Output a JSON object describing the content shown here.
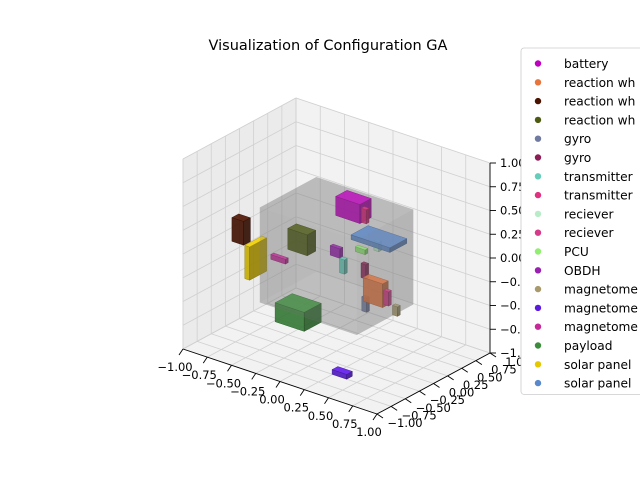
{
  "chart_data": {
    "type": "scatter",
    "subtype": "3d-boxes",
    "title": "Visualization of Configuration GA",
    "xlabel": "",
    "ylabel": "",
    "zlabel": "",
    "xlim": [
      -1.0,
      1.0
    ],
    "ylim": [
      -1.0,
      1.0
    ],
    "zlim": [
      -1.0,
      1.0
    ],
    "x_ticks": [
      "−1.00",
      "−0.75",
      "−0.50",
      "−0.25",
      "0.00",
      "0.25",
      "0.50",
      "0.75",
      "1.00"
    ],
    "y_ticks": [
      "−1.00",
      "−0.75",
      "−0.50",
      "−0.25",
      "0.00",
      "0.25",
      "0.50",
      "0.75",
      "1.00"
    ],
    "z_ticks": [
      "−1.00",
      "−0.75",
      "−0.50",
      "−0.25",
      "0.00",
      "0.25",
      "0.50",
      "0.75",
      "1.00"
    ],
    "grid": true,
    "legend_position": "right",
    "structure": {
      "color": "#808080",
      "label": ""
    },
    "components": [
      {
        "name": "battery",
        "color": "#c000c0",
        "center": [
          0.0,
          0.3,
          0.42
        ],
        "size": [
          0.25,
          0.2,
          0.2
        ]
      },
      {
        "name": "reaction wh",
        "color": "#e8743b",
        "center": [
          0.55,
          -0.25,
          -0.1
        ],
        "size": [
          0.2,
          0.1,
          0.25
        ]
      },
      {
        "name": "reaction wh",
        "color": "#4a1200",
        "center": [
          -0.75,
          -0.4,
          0.15
        ],
        "size": [
          0.12,
          0.12,
          0.25
        ]
      },
      {
        "name": "reaction wh",
        "color": "#4d5a12",
        "center": [
          -0.3,
          -0.1,
          0.1
        ],
        "size": [
          0.2,
          0.15,
          0.22
        ]
      },
      {
        "name": "gyro",
        "color": "#707aa0",
        "center": [
          0.3,
          0.0,
          -0.4
        ],
        "size": [
          0.05,
          0.05,
          0.15
        ]
      },
      {
        "name": "gyro",
        "color": "#8c1d55",
        "center": [
          0.35,
          -0.1,
          0.0
        ],
        "size": [
          0.05,
          0.05,
          0.15
        ]
      },
      {
        "name": "transmitter",
        "color": "#66cdbb",
        "center": [
          0.1,
          -0.05,
          -0.05
        ],
        "size": [
          0.05,
          0.05,
          0.15
        ]
      },
      {
        "name": "transmitter",
        "color": "#e03080",
        "center": [
          0.15,
          0.25,
          0.4
        ],
        "size": [
          0.05,
          0.05,
          0.15
        ]
      },
      {
        "name": "reciever",
        "color": "#b8ecc8",
        "center": [
          0.25,
          0.3,
          0.1
        ],
        "size": [
          0.05,
          0.05,
          0.1
        ]
      },
      {
        "name": "reciever",
        "color": "#d63a8a",
        "center": [
          0.7,
          -0.3,
          -0.1
        ],
        "size": [
          0.05,
          0.05,
          0.15
        ]
      },
      {
        "name": "PCU",
        "color": "#90ee70",
        "center": [
          0.2,
          0.1,
          0.1
        ],
        "size": [
          0.1,
          0.05,
          0.05
        ]
      },
      {
        "name": "OBDH",
        "color": "#9a20b0",
        "center": [
          0.0,
          0.0,
          0.05
        ],
        "size": [
          0.1,
          0.05,
          0.1
        ]
      },
      {
        "name": "magnetome",
        "color": "#a89a6a",
        "center": [
          0.85,
          -0.4,
          -0.15
        ],
        "size": [
          0.05,
          0.05,
          0.1
        ]
      },
      {
        "name": "magnetome",
        "color": "#5a1ae0",
        "center": [
          0.35,
          -0.5,
          -0.95
        ],
        "size": [
          0.15,
          0.1,
          0.05
        ]
      },
      {
        "name": "magnetome",
        "color": "#c62a9a",
        "center": [
          -0.5,
          -0.15,
          -0.15
        ],
        "size": [
          0.15,
          0.05,
          0.05
        ]
      },
      {
        "name": "payload",
        "color": "#3c8c3c",
        "center": [
          -0.25,
          -0.25,
          -0.6
        ],
        "size": [
          0.3,
          0.3,
          0.2
        ]
      },
      {
        "name": "solar panel",
        "color": "#e6c800",
        "center": [
          -0.6,
          -0.4,
          -0.1
        ],
        "size": [
          0.05,
          0.3,
          0.35
        ]
      },
      {
        "name": "solar panel",
        "color": "#5a88cc",
        "center": [
          0.35,
          0.15,
          0.25
        ],
        "size": [
          0.4,
          0.3,
          0.05
        ]
      }
    ]
  }
}
